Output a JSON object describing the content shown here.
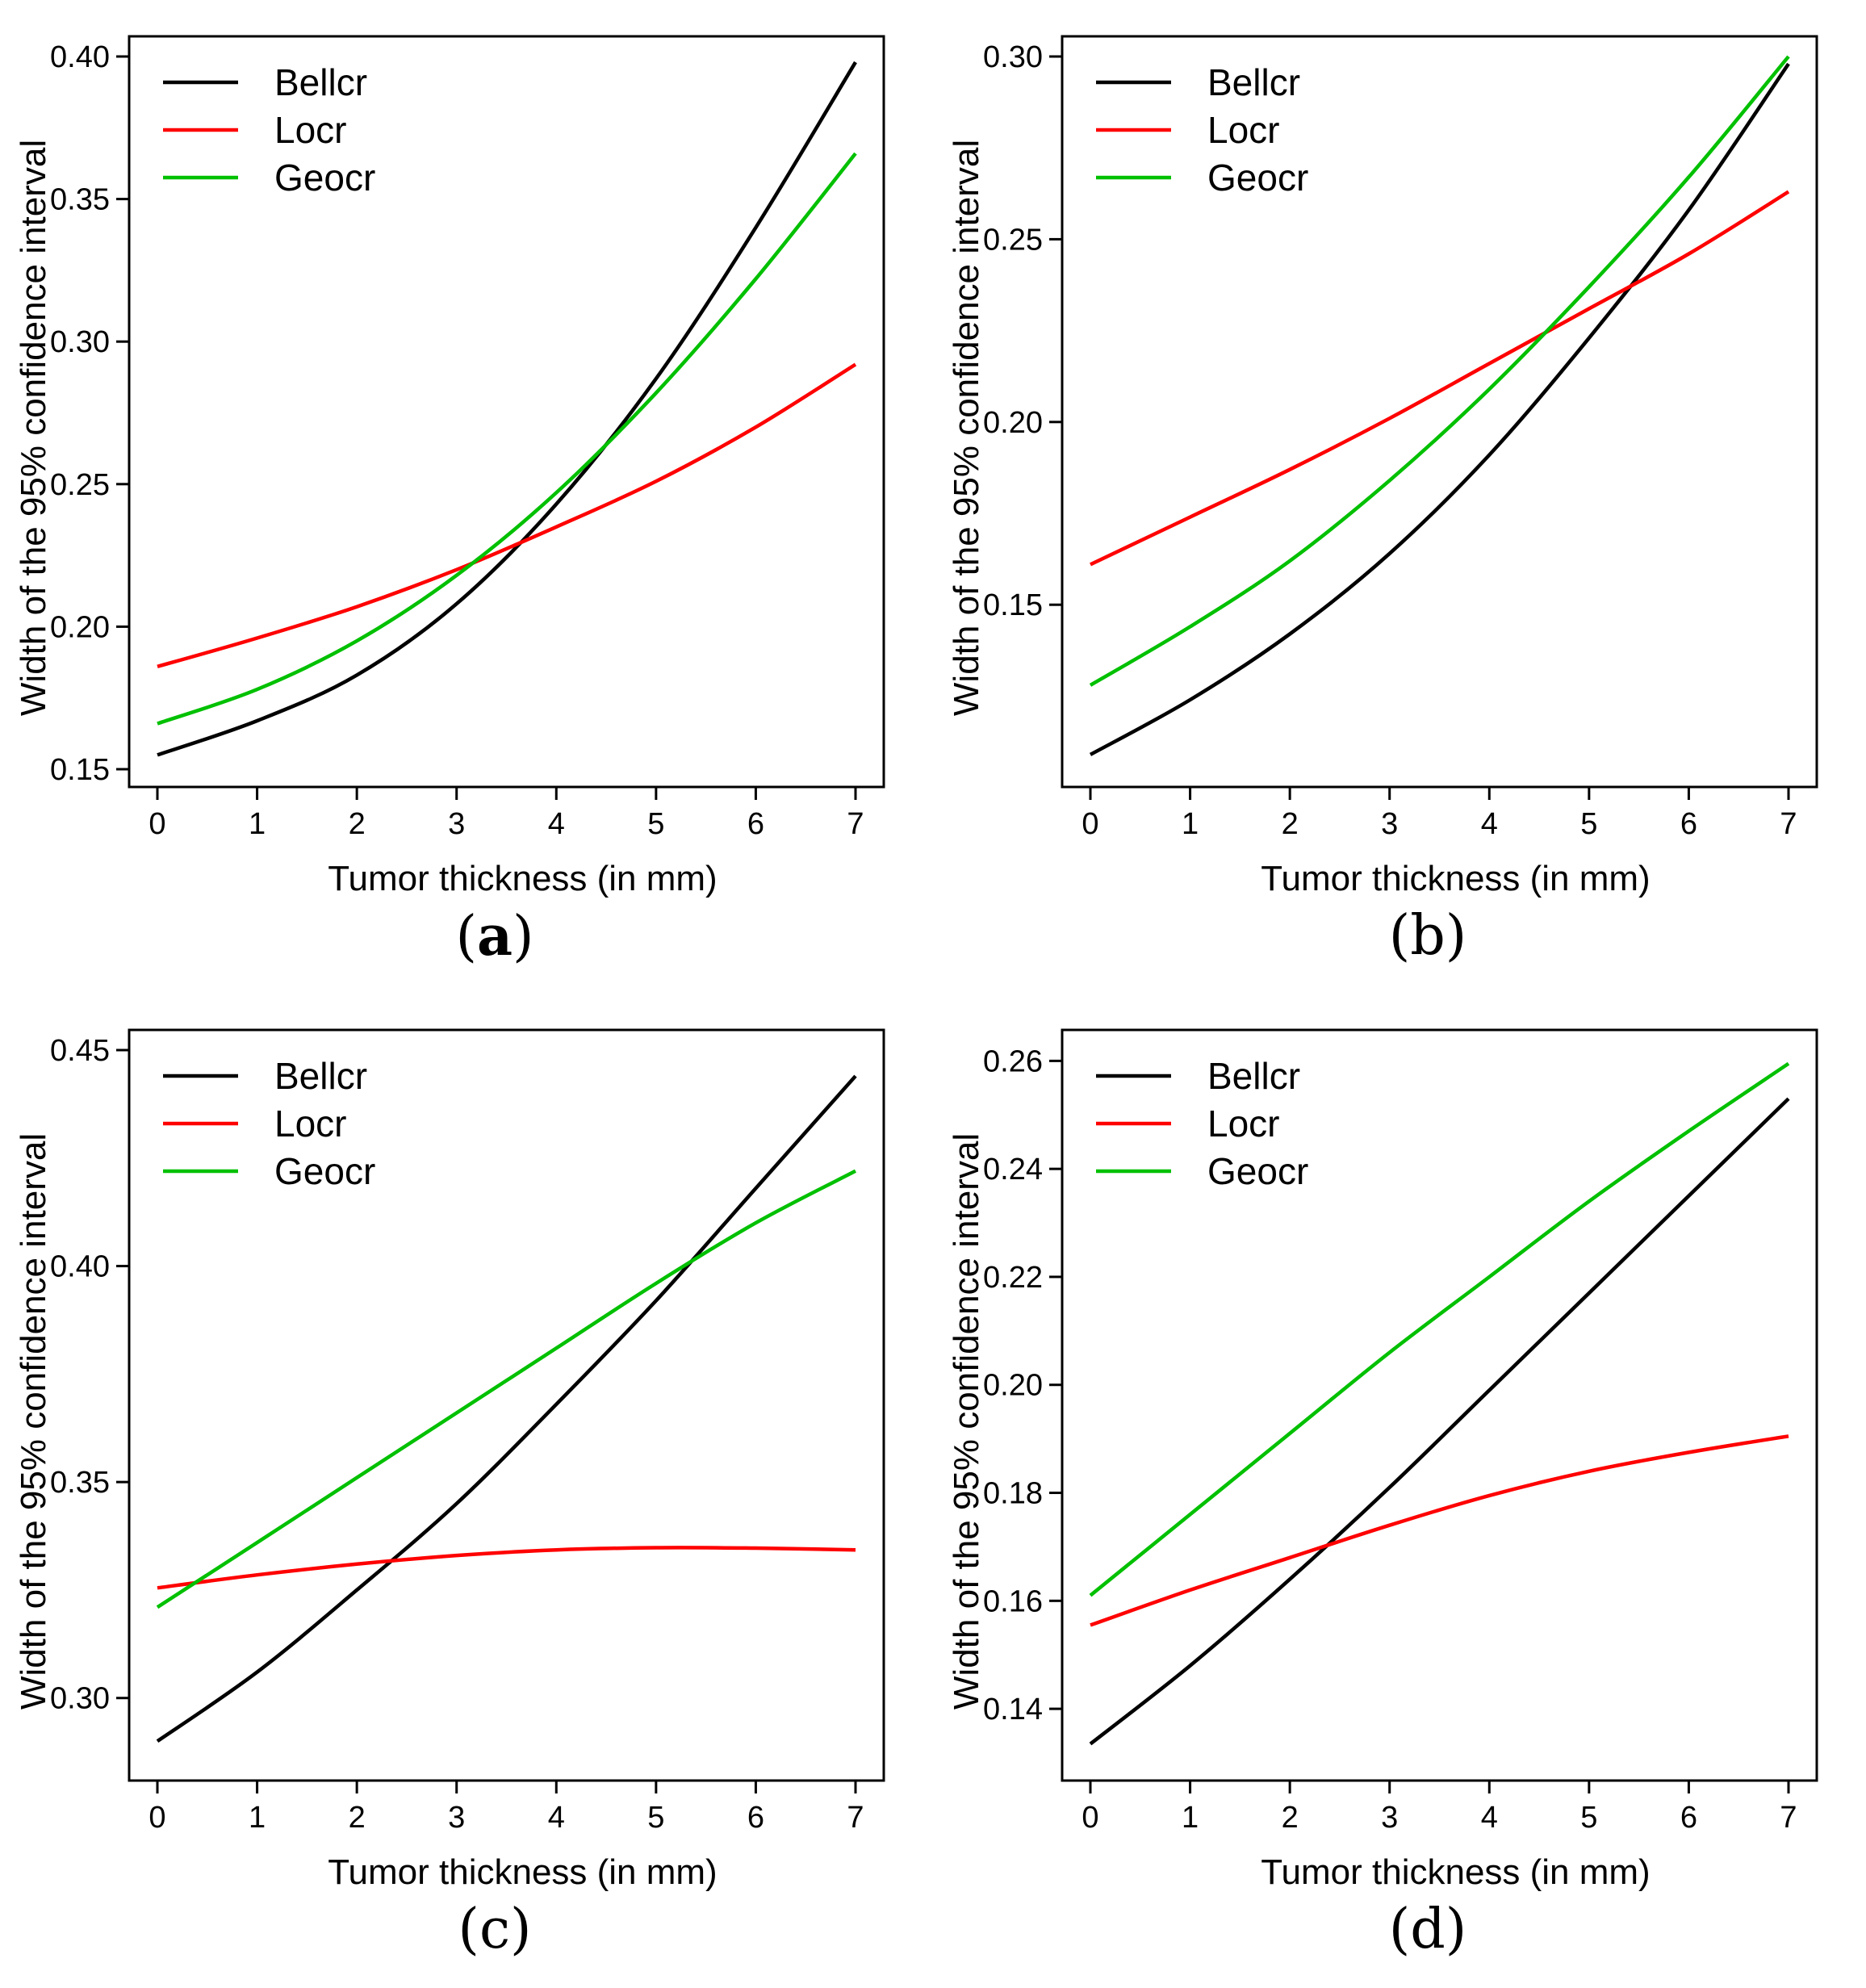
{
  "figure": {
    "panel_order": [
      "a",
      "b",
      "c",
      "d"
    ]
  },
  "chart_data": [
    {
      "id": "a",
      "type": "line",
      "caption_letter": "a",
      "xlabel": "Tumor thickness (in mm)",
      "ylabel": "Width of the 95% confidence interval",
      "xlim": [
        0,
        7
      ],
      "ylim": [
        0.15,
        0.4
      ],
      "xticks": [
        0,
        1,
        2,
        3,
        4,
        5,
        6,
        7
      ],
      "yticks": [
        0.15,
        0.2,
        0.25,
        0.3,
        0.35,
        0.4
      ],
      "ytick_labels": [
        "0.15",
        "0.20",
        "0.25",
        "0.30",
        "0.35",
        "0.40"
      ],
      "legend_position": "top-left",
      "x": [
        0,
        1,
        2,
        3,
        4,
        5,
        6,
        7
      ],
      "series": [
        {
          "name": "Bellcr",
          "color": "#000000",
          "values": [
            0.155,
            0.167,
            0.183,
            0.208,
            0.243,
            0.287,
            0.34,
            0.398
          ]
        },
        {
          "name": "Locr",
          "color": "#ff0000",
          "values": [
            0.186,
            0.196,
            0.207,
            0.22,
            0.235,
            0.251,
            0.27,
            0.292
          ]
        },
        {
          "name": "Geocr",
          "color": "#00c000",
          "values": [
            0.166,
            0.178,
            0.195,
            0.218,
            0.247,
            0.282,
            0.322,
            0.366
          ]
        }
      ]
    },
    {
      "id": "b",
      "type": "line",
      "caption_letter": "b",
      "xlabel": "Tumor thickness (in mm)",
      "ylabel": "Width of the 95% confidence interval",
      "xlim": [
        0,
        7
      ],
      "ylim": [
        0.105,
        0.3
      ],
      "xticks": [
        0,
        1,
        2,
        3,
        4,
        5,
        6,
        7
      ],
      "yticks": [
        0.15,
        0.2,
        0.25,
        0.3
      ],
      "ytick_labels": [
        "0.15",
        "0.20",
        "0.25",
        "0.30"
      ],
      "legend_position": "top-left",
      "x": [
        0,
        1,
        2,
        3,
        4,
        5,
        6,
        7
      ],
      "series": [
        {
          "name": "Bellcr",
          "color": "#000000",
          "values": [
            0.109,
            0.124,
            0.142,
            0.164,
            0.191,
            0.223,
            0.258,
            0.298
          ]
        },
        {
          "name": "Locr",
          "color": "#ff0000",
          "values": [
            0.161,
            0.174,
            0.187,
            0.201,
            0.216,
            0.231,
            0.246,
            0.263
          ]
        },
        {
          "name": "Geocr",
          "color": "#00c000",
          "values": [
            0.128,
            0.144,
            0.162,
            0.184,
            0.209,
            0.237,
            0.267,
            0.3
          ]
        }
      ]
    },
    {
      "id": "c",
      "type": "line",
      "caption_letter": "c",
      "xlabel": "Tumor thickness (in mm)",
      "ylabel": "Width of the 95% confidence interval",
      "xlim": [
        0,
        7
      ],
      "ylim": [
        0.285,
        0.45
      ],
      "xticks": [
        0,
        1,
        2,
        3,
        4,
        5,
        6,
        7
      ],
      "yticks": [
        0.3,
        0.35,
        0.4,
        0.45
      ],
      "ytick_labels": [
        "0.30",
        "0.35",
        "0.40",
        "0.45"
      ],
      "legend_position": "top-left",
      "x": [
        0,
        1,
        2,
        3,
        4,
        5,
        6,
        7
      ],
      "series": [
        {
          "name": "Bellcr",
          "color": "#000000",
          "values": [
            0.29,
            0.306,
            0.325,
            0.345,
            0.368,
            0.392,
            0.418,
            0.444
          ]
        },
        {
          "name": "Locr",
          "color": "#ff0000",
          "values": [
            0.3255,
            0.3285,
            0.331,
            0.333,
            0.3343,
            0.3348,
            0.3347,
            0.3343
          ]
        },
        {
          "name": "Geocr",
          "color": "#00c000",
          "values": [
            0.321,
            0.336,
            0.351,
            0.366,
            0.381,
            0.396,
            0.41,
            0.422
          ]
        }
      ]
    },
    {
      "id": "d",
      "type": "line",
      "caption_letter": "d",
      "xlabel": "Tumor thickness (in mm)",
      "ylabel": "Width of the 95% confidence interval",
      "xlim": [
        0,
        7
      ],
      "ylim": [
        0.13,
        0.262
      ],
      "xticks": [
        0,
        1,
        2,
        3,
        4,
        5,
        6,
        7
      ],
      "yticks": [
        0.14,
        0.16,
        0.18,
        0.2,
        0.22,
        0.24,
        0.26
      ],
      "ytick_labels": [
        "0.14",
        "0.16",
        "0.18",
        "0.20",
        "0.22",
        "0.24",
        "0.26"
      ],
      "legend_position": "top-left",
      "x": [
        0,
        1,
        2,
        3,
        4,
        5,
        6,
        7
      ],
      "series": [
        {
          "name": "Bellcr",
          "color": "#000000",
          "values": [
            0.1335,
            0.148,
            0.164,
            0.181,
            0.199,
            0.217,
            0.235,
            0.253
          ]
        },
        {
          "name": "Locr",
          "color": "#ff0000",
          "values": [
            0.1555,
            0.162,
            0.168,
            0.174,
            0.1795,
            0.184,
            0.1875,
            0.1905
          ]
        },
        {
          "name": "Geocr",
          "color": "#00c000",
          "values": [
            0.161,
            0.176,
            0.191,
            0.206,
            0.22,
            0.234,
            0.247,
            0.2595
          ]
        }
      ]
    }
  ]
}
